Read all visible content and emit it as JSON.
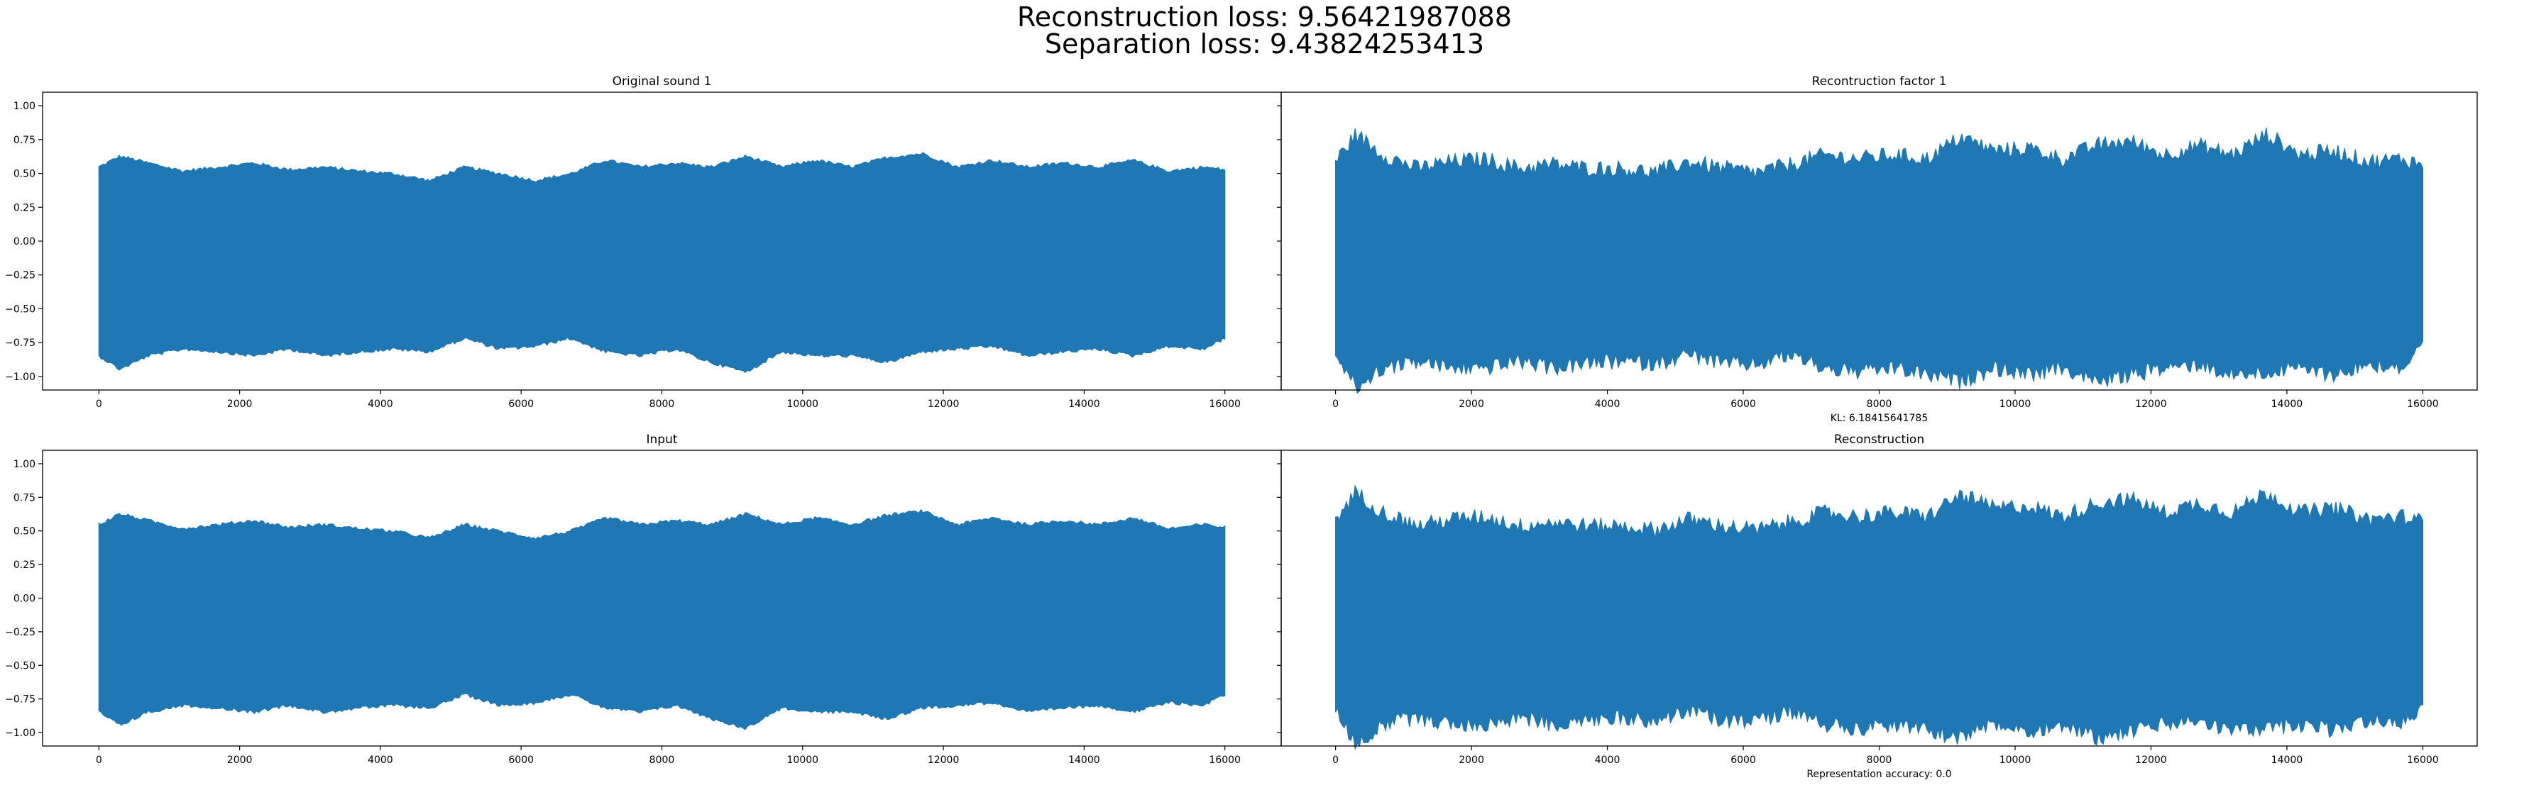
{
  "suptitle": {
    "line1": "Reconstruction loss: 9.56421987088",
    "line2": "Separation loss: 9.43824253413"
  },
  "colors": {
    "series": "#1f77b4",
    "axes": "#000000",
    "background": "#ffffff"
  },
  "chart_data": [
    {
      "type": "line",
      "title": "Original sound 1",
      "xlabel": "",
      "ylabel": "",
      "xlim": [
        -800,
        16800
      ],
      "ylim": [
        -1.1,
        1.1
      ],
      "xticks": [
        0,
        2000,
        4000,
        6000,
        8000,
        10000,
        12000,
        14000,
        16000
      ],
      "xtick_labels": [
        "0",
        "2000",
        "4000",
        "6000",
        "8000",
        "10000",
        "12000",
        "14000",
        "16000"
      ],
      "yticks": [
        1.0,
        0.75,
        0.5,
        0.25,
        0.0,
        -0.25,
        -0.5,
        -0.75,
        -1.0
      ],
      "ytick_labels": [
        "1.00",
        "0.75",
        "0.50",
        "0.25",
        "0.00",
        "−0.25",
        "−0.50",
        "−0.75",
        "−1.00"
      ],
      "grid": false,
      "series": [
        {
          "x": [
            0,
            300,
            700,
            1200,
            1700,
            2200,
            2700,
            3200,
            3700,
            4200,
            4700,
            5200,
            5700,
            6200,
            6700,
            7200,
            7700,
            8200,
            8700,
            9200,
            9700,
            10200,
            10700,
            11200,
            11700,
            12200,
            12700,
            13200,
            13700,
            14200,
            14700,
            15200,
            15700,
            16000
          ],
          "upper": [
            0.55,
            0.63,
            0.58,
            0.52,
            0.55,
            0.58,
            0.53,
            0.55,
            0.52,
            0.5,
            0.45,
            0.55,
            0.5,
            0.45,
            0.5,
            0.6,
            0.55,
            0.58,
            0.55,
            0.63,
            0.55,
            0.6,
            0.55,
            0.62,
            0.65,
            0.55,
            0.6,
            0.55,
            0.58,
            0.55,
            0.6,
            0.52,
            0.55,
            0.53
          ],
          "lower": [
            -0.85,
            -0.95,
            -0.85,
            -0.8,
            -0.82,
            -0.85,
            -0.8,
            -0.85,
            -0.82,
            -0.8,
            -0.82,
            -0.72,
            -0.8,
            -0.78,
            -0.72,
            -0.82,
            -0.85,
            -0.8,
            -0.9,
            -0.97,
            -0.82,
            -0.85,
            -0.85,
            -0.9,
            -0.82,
            -0.8,
            -0.78,
            -0.85,
            -0.82,
            -0.8,
            -0.85,
            -0.78,
            -0.8,
            -0.72
          ]
        }
      ]
    },
    {
      "type": "line",
      "title": "Recontruction factor 1",
      "xlabel": "KL: 6.18415641785",
      "ylabel": "",
      "xlim": [
        -800,
        16800
      ],
      "ylim": [
        -1.1,
        1.1
      ],
      "xticks": [
        0,
        2000,
        4000,
        6000,
        8000,
        10000,
        12000,
        14000,
        16000
      ],
      "xtick_labels": [
        "0",
        "2000",
        "4000",
        "6000",
        "8000",
        "10000",
        "12000",
        "14000",
        "16000"
      ],
      "grid": false,
      "series": [
        {
          "x": [
            0,
            300,
            700,
            1200,
            1700,
            2200,
            2700,
            3200,
            3700,
            4200,
            4700,
            5200,
            5700,
            6200,
            6700,
            7200,
            7700,
            8200,
            8700,
            9200,
            9700,
            10200,
            10700,
            11200,
            11700,
            12200,
            12700,
            13200,
            13700,
            14200,
            14700,
            15200,
            15700,
            16000
          ],
          "upper": [
            0.6,
            0.8,
            0.65,
            0.55,
            0.6,
            0.62,
            0.55,
            0.58,
            0.55,
            0.55,
            0.52,
            0.6,
            0.55,
            0.52,
            0.58,
            0.65,
            0.62,
            0.65,
            0.62,
            0.78,
            0.68,
            0.7,
            0.62,
            0.72,
            0.75,
            0.65,
            0.72,
            0.65,
            0.8,
            0.65,
            0.68,
            0.6,
            0.62,
            0.58
          ],
          "lower": [
            -0.85,
            -1.1,
            -0.95,
            -0.9,
            -0.95,
            -0.95,
            -0.9,
            -0.95,
            -0.92,
            -0.9,
            -0.92,
            -0.85,
            -0.92,
            -0.92,
            -0.85,
            -0.95,
            -0.98,
            -0.95,
            -1.0,
            -1.05,
            -0.95,
            -1.0,
            -0.95,
            -1.05,
            -1.0,
            -0.95,
            -0.92,
            -1.0,
            -0.98,
            -0.95,
            -1.0,
            -0.92,
            -0.95,
            -0.8
          ]
        }
      ]
    },
    {
      "type": "line",
      "title": "Input",
      "xlabel": "",
      "ylabel": "",
      "xlim": [
        -800,
        16800
      ],
      "ylim": [
        -1.1,
        1.1
      ],
      "xticks": [
        0,
        2000,
        4000,
        6000,
        8000,
        10000,
        12000,
        14000,
        16000
      ],
      "xtick_labels": [
        "0",
        "2000",
        "4000",
        "6000",
        "8000",
        "10000",
        "12000",
        "14000",
        "16000"
      ],
      "yticks": [
        1.0,
        0.75,
        0.5,
        0.25,
        0.0,
        -0.25,
        -0.5,
        -0.75,
        -1.0
      ],
      "ytick_labels": [
        "1.00",
        "0.75",
        "0.50",
        "0.25",
        "0.00",
        "−0.25",
        "−0.50",
        "−0.75",
        "−1.00"
      ],
      "grid": false,
      "series": [
        {
          "x": [
            0,
            300,
            700,
            1200,
            1700,
            2200,
            2700,
            3200,
            3700,
            4200,
            4700,
            5200,
            5700,
            6200,
            6700,
            7200,
            7700,
            8200,
            8700,
            9200,
            9700,
            10200,
            10700,
            11200,
            11700,
            12200,
            12700,
            13200,
            13700,
            14200,
            14700,
            15200,
            15700,
            16000
          ],
          "upper": [
            0.55,
            0.63,
            0.58,
            0.52,
            0.55,
            0.58,
            0.53,
            0.55,
            0.52,
            0.5,
            0.45,
            0.55,
            0.5,
            0.45,
            0.5,
            0.6,
            0.55,
            0.58,
            0.55,
            0.63,
            0.55,
            0.6,
            0.55,
            0.62,
            0.65,
            0.55,
            0.6,
            0.55,
            0.58,
            0.55,
            0.6,
            0.52,
            0.55,
            0.53
          ],
          "lower": [
            -0.85,
            -0.95,
            -0.85,
            -0.8,
            -0.82,
            -0.85,
            -0.8,
            -0.85,
            -0.82,
            -0.8,
            -0.82,
            -0.72,
            -0.8,
            -0.78,
            -0.72,
            -0.82,
            -0.85,
            -0.8,
            -0.9,
            -0.97,
            -0.82,
            -0.85,
            -0.85,
            -0.9,
            -0.82,
            -0.8,
            -0.78,
            -0.85,
            -0.82,
            -0.8,
            -0.85,
            -0.78,
            -0.8,
            -0.72
          ]
        }
      ]
    },
    {
      "type": "line",
      "title": "Reconstruction",
      "xlabel": "Representation accuracy: 0.0",
      "ylabel": "",
      "xlim": [
        -800,
        16800
      ],
      "ylim": [
        -1.1,
        1.1
      ],
      "xticks": [
        0,
        2000,
        4000,
        6000,
        8000,
        10000,
        12000,
        14000,
        16000
      ],
      "xtick_labels": [
        "0",
        "2000",
        "4000",
        "6000",
        "8000",
        "10000",
        "12000",
        "14000",
        "16000"
      ],
      "grid": false,
      "series": [
        {
          "x": [
            0,
            300,
            700,
            1200,
            1700,
            2200,
            2700,
            3200,
            3700,
            4200,
            4700,
            5200,
            5700,
            6200,
            6700,
            7200,
            7700,
            8200,
            8700,
            9200,
            9700,
            10200,
            10700,
            11200,
            11700,
            12200,
            12700,
            13200,
            13700,
            14200,
            14700,
            15200,
            15700,
            16000
          ],
          "upper": [
            0.6,
            0.8,
            0.65,
            0.55,
            0.6,
            0.62,
            0.55,
            0.58,
            0.55,
            0.55,
            0.52,
            0.6,
            0.55,
            0.52,
            0.58,
            0.65,
            0.62,
            0.65,
            0.62,
            0.78,
            0.68,
            0.7,
            0.62,
            0.72,
            0.75,
            0.65,
            0.72,
            0.65,
            0.8,
            0.65,
            0.68,
            0.6,
            0.62,
            0.58
          ],
          "lower": [
            -0.85,
            -1.1,
            -0.95,
            -0.9,
            -0.95,
            -0.95,
            -0.9,
            -0.95,
            -0.92,
            -0.9,
            -0.92,
            -0.85,
            -0.92,
            -0.92,
            -0.85,
            -0.95,
            -0.98,
            -0.95,
            -1.0,
            -1.05,
            -0.95,
            -1.0,
            -0.95,
            -1.05,
            -1.0,
            -0.95,
            -0.92,
            -1.0,
            -0.98,
            -0.95,
            -1.0,
            -0.92,
            -0.95,
            -0.8
          ]
        }
      ]
    }
  ]
}
